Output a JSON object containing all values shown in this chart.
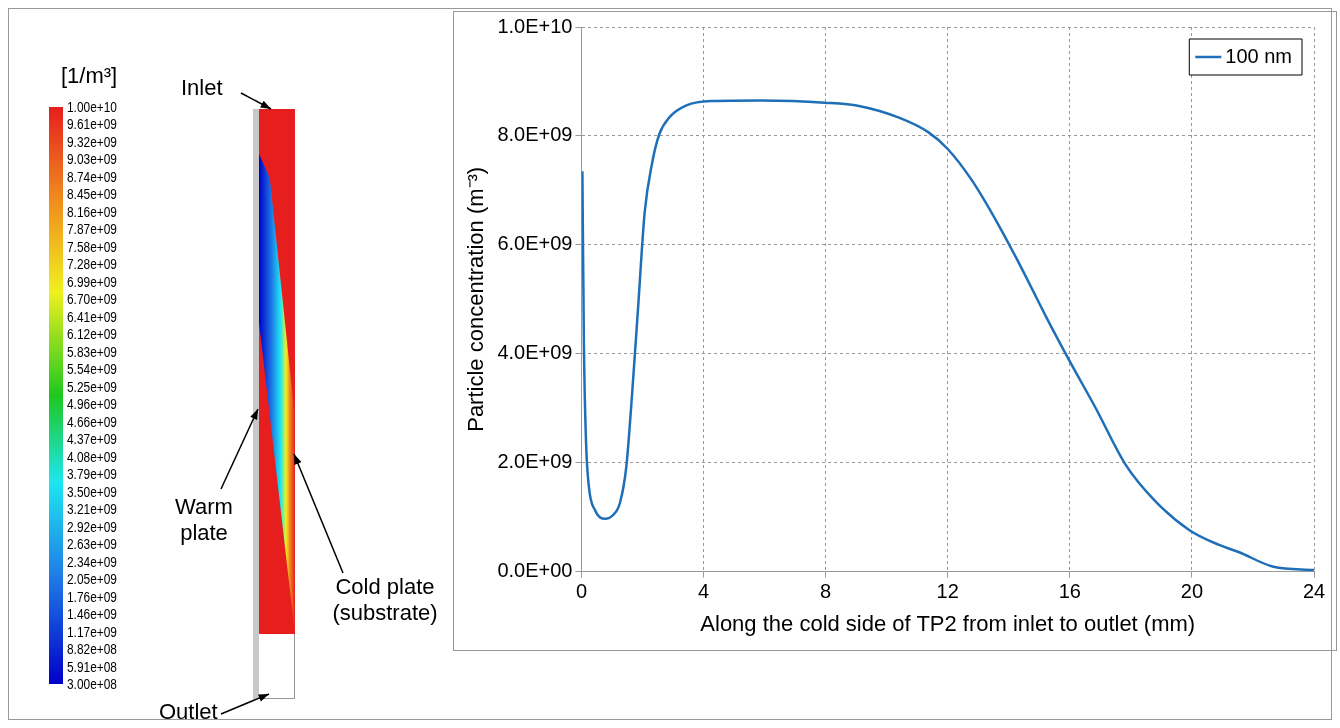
{
  "chart_data": [
    {
      "type": "other",
      "clabel": "[1/m³]",
      "annotations": [
        "Inlet",
        "Warm plate",
        "Cold plate (substrate)",
        "Outlet",
        "1.00e+10",
        "9.61e+09",
        "9.32e+09",
        "9.03e+09",
        "8.74e+09",
        "8.45e+09",
        "8.16e+09",
        "7.87e+09",
        "7.58e+09",
        "7.28e+09",
        "6.99e+09",
        "6.70e+09",
        "6.41e+09",
        "6.12e+09",
        "5.83e+09",
        "5.54e+09",
        "5.25e+09",
        "4.96e+09",
        "4.66e+09",
        "4.37e+09",
        "4.08e+09",
        "3.79e+09",
        "3.50e+09",
        "3.21e+09",
        "2.92e+09",
        "2.63e+09",
        "2.34e+09",
        "2.05e+09",
        "1.76e+09",
        "1.46e+09",
        "1.17e+09",
        "8.82e+08",
        "5.91e+08",
        "3.00e+08"
      ]
    },
    {
      "type": "line",
      "xlabel": "Along the cold side of TP2 from inlet to outlet (mm)",
      "ylabel": "Particle concentration (m⁻³)",
      "xlim": [
        0,
        24
      ],
      "xticks": [
        0,
        4,
        8,
        12,
        16,
        20,
        24
      ],
      "ylim": [
        0,
        10000000000.0
      ],
      "yticks": [
        {
          "value": 0,
          "label": "0.0E+00"
        },
        {
          "value": 2000000000.0,
          "label": "2.0E+09"
        },
        {
          "value": 4000000000.0,
          "label": "4.0E+09"
        },
        {
          "value": 6000000000.0,
          "label": "6.0E+09"
        },
        {
          "value": 8000000000.0,
          "label": "8.0E+09"
        },
        {
          "value": 10000000000.0,
          "label": "1.0E+10"
        }
      ],
      "grid": true,
      "legend": "top right",
      "marker": "none",
      "line_style": "solid",
      "series": [
        {
          "name": "100 nm",
          "color": "#1f6fb8",
          "x": [
            0.03,
            0.08,
            0.15,
            0.24,
            0.45,
            0.78,
            1.02,
            1.26,
            1.47,
            1.66,
            1.86,
            2.07,
            2.31,
            2.55,
            2.88,
            3.44,
            4.25,
            5.86,
            7.96,
            9.09,
            10.38,
            11.36,
            12.0,
            12.81,
            13.62,
            14.43,
            15.24,
            16.0,
            16.85,
            17.82,
            18.79,
            19.92,
            20.89,
            21.53,
            22.67,
            24.0
          ],
          "values": [
            7350000000.0,
            4170000000.0,
            2380000000.0,
            1570000000.0,
            1120000000.0,
            970000000.0,
            1030000000.0,
            1260000000.0,
            1930000000.0,
            3270000000.0,
            4890000000.0,
            6590000000.0,
            7490000000.0,
            8030000000.0,
            8340000000.0,
            8560000000.0,
            8640000000.0,
            8650000000.0,
            8610000000.0,
            8550000000.0,
            8340000000.0,
            8070000000.0,
            7760000000.0,
            7170000000.0,
            6410000000.0,
            5560000000.0,
            4660000000.0,
            3860000000.0,
            3000000000.0,
            1970000000.0,
            1300000000.0,
            760000000.0,
            490000000.0,
            360000000.0,
            90000000.0,
            30000000.0
          ]
        }
      ]
    }
  ]
}
